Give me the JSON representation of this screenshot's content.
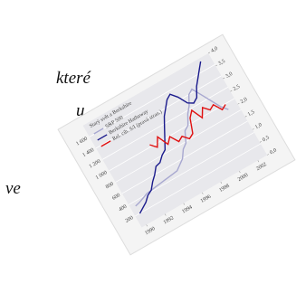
{
  "text_fragments": [
    "které",
    "u,",
    "ve"
  ],
  "chart_data": {
    "type": "line",
    "title": "Starý svět a Berkshire",
    "x": [
      1990,
      1990.5,
      1991,
      1991.5,
      1992,
      1992.5,
      1993,
      1993.5,
      1994,
      1994.5,
      1995,
      1995.5,
      1996,
      1996.5,
      1997,
      1997.5,
      1998,
      1998.5,
      1999,
      1999.5,
      2000,
      2000.5,
      2001,
      2001.5,
      2002
    ],
    "xlim": [
      1989.5,
      2003
    ],
    "xticks": [
      1990,
      1992,
      1994,
      1996,
      1998,
      2000,
      2002
    ],
    "ylim": [
      0,
      1800
    ],
    "yticks": [
      200,
      400,
      600,
      800,
      {
        "value": 1000,
        "label": "1 000"
      },
      {
        "value": 1200,
        "label": "1 200"
      },
      {
        "value": 1400,
        "label": "1 400"
      },
      {
        "value": 1600,
        "label": "1 600"
      }
    ],
    "y2lim": [
      0,
      4.0
    ],
    "y2ticks": [
      {
        "value": 0,
        "label": "0,0"
      },
      {
        "value": 0.5,
        "label": "0,5"
      },
      {
        "value": 1.0,
        "label": "1,0"
      },
      {
        "value": 1.5,
        "label": "1,5"
      },
      {
        "value": 2.0,
        "label": "2,0"
      },
      {
        "value": 2.5,
        "label": "2,5"
      },
      {
        "value": 3.0,
        "label": "3,0"
      },
      {
        "value": 3.5,
        "label": "3,5"
      },
      {
        "value": 4.0,
        "label": "4,0"
      }
    ],
    "grid": true,
    "legend": "upper left",
    "series": [
      {
        "name": "S&P 500",
        "color": "#a8a8d0",
        "values": [
          330,
          350,
          380,
          410,
          420,
          430,
          440,
          450,
          460,
          470,
          480,
          540,
          600,
          720,
          780,
          950,
          1000,
          1150,
          1250,
          1400,
          1450,
          1300,
          1150,
          1000,
          900
        ]
      },
      {
        "name": "Berkshire Hathaway",
        "color": "#1a1a8c",
        "values": [
          200,
          250,
          300,
          380,
          420,
          520,
          600,
          700,
          720,
          800,
          850,
          1000,
          1150,
          1300,
          1400,
          1500,
          1550,
          1450,
          1300,
          1250,
          1300,
          1450,
          1550,
          1650,
          1750
        ]
      },
      {
        "name": "Rel. cih. S/I (pravá stran.)",
        "color": "#e01010",
        "axis": "y2",
        "values": [
          null,
          null,
          null,
          null,
          null,
          null,
          null,
          null,
          2.3,
          2.1,
          2.4,
          2.0,
          2.2,
          1.9,
          2.0,
          1.8,
          1.9,
          2.4,
          2.6,
          2.2,
          2.5,
          2.3,
          2.4,
          2.1,
          2.2
        ]
      }
    ]
  }
}
